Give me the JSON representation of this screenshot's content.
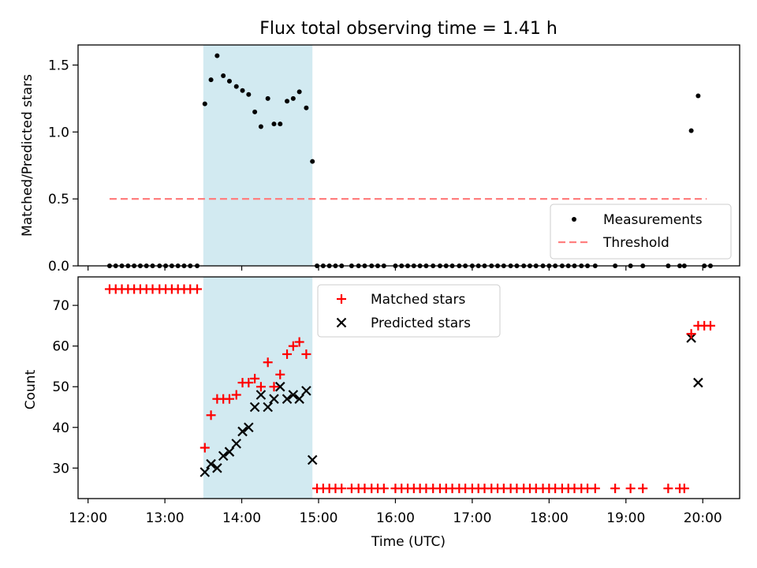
{
  "figure_title": "Flux total observing time = 1.41 h",
  "x_axis_label": "Time (UTC)",
  "x_ticks": [
    "12:00",
    "13:00",
    "14:00",
    "15:00",
    "16:00",
    "17:00",
    "18:00",
    "19:00",
    "20:00"
  ],
  "colors": {
    "measurements": "#000000",
    "threshold": "#ff7f7f",
    "matched": "#ff0000",
    "predicted": "#000000",
    "shade": "#add8e6"
  },
  "chart_data": [
    {
      "type": "scatter",
      "title": "Flux total observing time = 1.41 h",
      "xlabel": "",
      "ylabel": "Matched/Predicted stars",
      "ylim": [
        0,
        1.65
      ],
      "yticks": [
        "0.0",
        "0.5",
        "1.0",
        "1.5"
      ],
      "xlim_hours": [
        11.87,
        20.48
      ],
      "shaded_region_hours": [
        13.5,
        14.92
      ],
      "legend_position": "lower right",
      "threshold": {
        "name": "Threshold",
        "value": 0.5,
        "x_range_hours": [
          12.28,
          20.05
        ]
      },
      "series": [
        {
          "name": "Measurements",
          "x_hours": [
            12.28,
            12.36,
            12.44,
            12.52,
            12.6,
            12.68,
            12.76,
            12.84,
            12.93,
            13.01,
            13.09,
            13.17,
            13.25,
            13.33,
            13.42,
            13.52,
            13.6,
            13.68,
            13.76,
            13.84,
            13.93,
            14.01,
            14.09,
            14.17,
            14.25,
            14.34,
            14.42,
            14.5,
            14.59,
            14.67,
            14.75,
            14.84,
            14.92,
            14.98,
            15.06,
            15.14,
            15.22,
            15.3,
            15.43,
            15.52,
            15.6,
            15.69,
            15.77,
            15.85,
            16.0,
            16.08,
            16.16,
            16.24,
            16.32,
            16.4,
            16.49,
            16.58,
            16.66,
            16.74,
            16.83,
            16.91,
            17.0,
            17.08,
            17.16,
            17.25,
            17.33,
            17.41,
            17.5,
            17.58,
            17.67,
            17.75,
            17.83,
            17.92,
            18.0,
            18.08,
            18.17,
            18.25,
            18.33,
            18.42,
            18.5,
            18.6,
            18.86,
            19.06,
            19.22,
            19.55,
            19.7,
            19.76,
            19.85,
            19.94,
            20.02,
            20.1
          ],
          "y": [
            0,
            0,
            0,
            0,
            0,
            0,
            0,
            0,
            0,
            0,
            0,
            0,
            0,
            0,
            0,
            1.21,
            1.39,
            1.57,
            1.42,
            1.38,
            1.34,
            1.31,
            1.28,
            1.15,
            1.04,
            1.25,
            1.06,
            1.06,
            1.23,
            1.25,
            1.3,
            1.18,
            0.78,
            0,
            0,
            0,
            0,
            0,
            0,
            0,
            0,
            0,
            0,
            0,
            0,
            0,
            0,
            0,
            0,
            0,
            0,
            0,
            0,
            0,
            0,
            0,
            0,
            0,
            0,
            0,
            0,
            0,
            0,
            0,
            0,
            0,
            0,
            0,
            0,
            0,
            0,
            0,
            0,
            0,
            0,
            0,
            0,
            0,
            0,
            0,
            0,
            0,
            1.01,
            1.27,
            0,
            0
          ]
        }
      ]
    },
    {
      "type": "scatter",
      "xlabel": "Time (UTC)",
      "ylabel": "Count",
      "ylim": [
        22.5,
        77
      ],
      "yticks": [
        "30",
        "40",
        "50",
        "60",
        "70"
      ],
      "xlim_hours": [
        11.87,
        20.48
      ],
      "shaded_region_hours": [
        13.5,
        14.92
      ],
      "legend_position": "upper center",
      "series": [
        {
          "name": "Matched stars",
          "x_hours": [
            12.28,
            12.36,
            12.44,
            12.52,
            12.6,
            12.68,
            12.76,
            12.84,
            12.93,
            13.01,
            13.09,
            13.17,
            13.25,
            13.33,
            13.42,
            13.52,
            13.6,
            13.68,
            13.76,
            13.84,
            13.93,
            14.01,
            14.09,
            14.17,
            14.25,
            14.34,
            14.42,
            14.5,
            14.59,
            14.67,
            14.75,
            14.84,
            14.98,
            15.06,
            15.14,
            15.22,
            15.3,
            15.43,
            15.52,
            15.6,
            15.69,
            15.77,
            15.85,
            16.0,
            16.08,
            16.16,
            16.24,
            16.32,
            16.4,
            16.49,
            16.58,
            16.66,
            16.74,
            16.83,
            16.91,
            17.0,
            17.08,
            17.16,
            17.25,
            17.33,
            17.41,
            17.5,
            17.58,
            17.67,
            17.75,
            17.83,
            17.92,
            18.0,
            18.08,
            18.17,
            18.25,
            18.33,
            18.42,
            18.5,
            18.6,
            18.86,
            19.06,
            19.22,
            19.55,
            19.7,
            19.76,
            19.85,
            19.94,
            20.02,
            20.1
          ],
          "y": [
            74,
            74,
            74,
            74,
            74,
            74,
            74,
            74,
            74,
            74,
            74,
            74,
            74,
            74,
            74,
            35,
            43,
            47,
            47,
            47,
            48,
            51,
            51,
            52,
            50,
            56,
            50,
            53,
            58,
            60,
            61,
            58,
            25,
            25,
            25,
            25,
            25,
            25,
            25,
            25,
            25,
            25,
            25,
            25,
            25,
            25,
            25,
            25,
            25,
            25,
            25,
            25,
            25,
            25,
            25,
            25,
            25,
            25,
            25,
            25,
            25,
            25,
            25,
            25,
            25,
            25,
            25,
            25,
            25,
            25,
            25,
            25,
            25,
            25,
            25,
            25,
            25,
            25,
            25,
            25,
            25,
            63,
            65,
            65,
            65
          ]
        },
        {
          "name": "Predicted stars",
          "x_hours": [
            13.52,
            13.6,
            13.68,
            13.76,
            13.84,
            13.93,
            14.01,
            14.09,
            14.17,
            14.25,
            14.34,
            14.42,
            14.5,
            14.59,
            14.67,
            14.75,
            14.84,
            14.92,
            19.85,
            19.94
          ],
          "y": [
            29,
            31,
            30,
            33,
            34,
            36,
            39,
            40,
            45,
            48,
            45,
            47,
            50,
            47,
            48,
            47,
            49,
            32,
            62,
            51
          ]
        }
      ]
    }
  ]
}
